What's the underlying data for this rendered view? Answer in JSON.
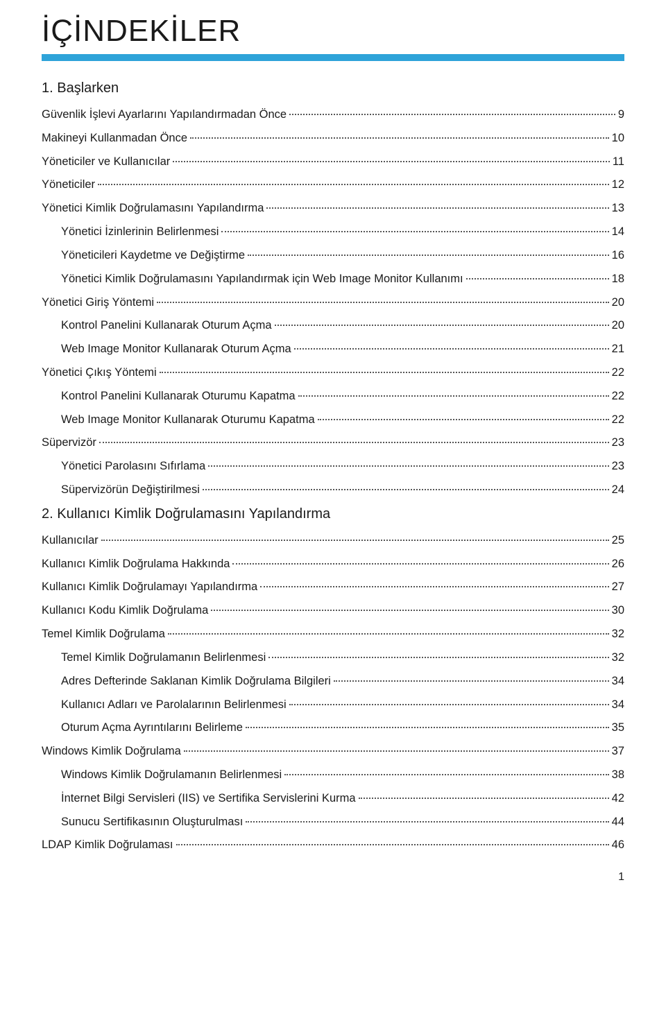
{
  "title": "İÇİNDEKİLER",
  "underline_color": "#2ea3d9",
  "sections": [
    {
      "heading": "1. Başlarken",
      "heading_color": "#1a1a1a",
      "entries": [
        {
          "label": "Güvenlik İşlevi Ayarlarını Yapılandırmadan Önce",
          "page": "9",
          "indent": 0
        },
        {
          "label": "Makineyi Kullanmadan Önce",
          "page": "10",
          "indent": 0
        },
        {
          "label": "Yöneticiler ve Kullanıcılar",
          "page": "11",
          "indent": 0
        },
        {
          "label": "Yöneticiler",
          "page": "12",
          "indent": 0
        },
        {
          "label": "Yönetici Kimlik Doğrulamasını Yapılandırma",
          "page": "13",
          "indent": 0
        },
        {
          "label": "Yönetici İzinlerinin Belirlenmesi",
          "page": "14",
          "indent": 1
        },
        {
          "label": "Yöneticileri Kaydetme ve Değiştirme",
          "page": "16",
          "indent": 1
        },
        {
          "label": "Yönetici Kimlik Doğrulamasını Yapılandırmak için Web Image Monitor Kullanımı",
          "page": "18",
          "indent": 1
        },
        {
          "label": "Yönetici Giriş Yöntemi",
          "page": "20",
          "indent": 0
        },
        {
          "label": "Kontrol Panelini Kullanarak Oturum Açma",
          "page": "20",
          "indent": 1
        },
        {
          "label": "Web Image Monitor Kullanarak Oturum Açma",
          "page": "21",
          "indent": 1
        },
        {
          "label": "Yönetici Çıkış Yöntemi",
          "page": "22",
          "indent": 0
        },
        {
          "label": "Kontrol Panelini Kullanarak Oturumu Kapatma",
          "page": "22",
          "indent": 1
        },
        {
          "label": "Web Image Monitor Kullanarak Oturumu Kapatma",
          "page": "22",
          "indent": 1
        },
        {
          "label": "Süpervizör",
          "page": "23",
          "indent": 0
        },
        {
          "label": "Yönetici Parolasını Sıfırlama",
          "page": "23",
          "indent": 1
        },
        {
          "label": "Süpervizörün Değiştirilmesi",
          "page": "24",
          "indent": 1
        }
      ]
    },
    {
      "heading": "2. Kullanıcı Kimlik Doğrulamasını Yapılandırma",
      "heading_color": "#1a1a1a",
      "entries": [
        {
          "label": "Kullanıcılar",
          "page": "25",
          "indent": 0
        },
        {
          "label": "Kullanıcı Kimlik Doğrulama Hakkında",
          "page": "26",
          "indent": 0
        },
        {
          "label": "Kullanıcı Kimlik Doğrulamayı Yapılandırma",
          "page": "27",
          "indent": 0
        },
        {
          "label": "Kullanıcı Kodu Kimlik Doğrulama",
          "page": "30",
          "indent": 0
        },
        {
          "label": "Temel Kimlik Doğrulama",
          "page": "32",
          "indent": 0
        },
        {
          "label": "Temel Kimlik Doğrulamanın Belirlenmesi",
          "page": "32",
          "indent": 1
        },
        {
          "label": "Adres Defterinde Saklanan Kimlik Doğrulama Bilgileri",
          "page": "34",
          "indent": 1
        },
        {
          "label": "Kullanıcı Adları ve Parolalarının Belirlenmesi",
          "page": "34",
          "indent": 1
        },
        {
          "label": "Oturum Açma Ayrıntılarını Belirleme",
          "page": "35",
          "indent": 1
        },
        {
          "label": "Windows Kimlik Doğrulama",
          "page": "37",
          "indent": 0
        },
        {
          "label": "Windows Kimlik Doğrulamanın Belirlenmesi",
          "page": "38",
          "indent": 1
        },
        {
          "label": "İnternet Bilgi Servisleri (IIS) ve Sertifika Servislerini Kurma",
          "page": "42",
          "indent": 1
        },
        {
          "label": "Sunucu Sertifikasının Oluşturulması",
          "page": "44",
          "indent": 1
        },
        {
          "label": "LDAP Kimlik Doğrulaması",
          "page": "46",
          "indent": 0
        }
      ]
    }
  ],
  "footer_page": "1"
}
